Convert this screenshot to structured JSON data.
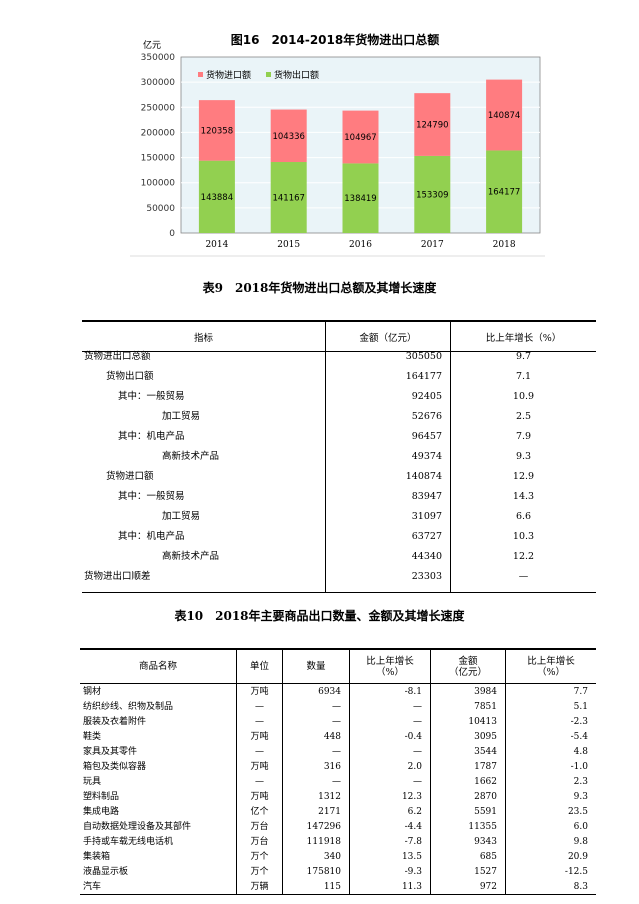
{
  "chart_data": {
    "type": "bar",
    "stacked": true,
    "title": "图16　2014-2018年货物进出口总额",
    "ylabel": "亿元",
    "ylim": [
      0,
      350000
    ],
    "yticks": [
      0,
      50000,
      100000,
      150000,
      200000,
      250000,
      300000,
      350000
    ],
    "categories": [
      "2014",
      "2015",
      "2016",
      "2017",
      "2018"
    ],
    "series": [
      {
        "name": "货物出口额",
        "color": "#92d050",
        "values": [
          143884,
          141167,
          138419,
          153309,
          164177
        ]
      },
      {
        "name": "货物进口额",
        "color": "#ff7c80",
        "values": [
          120358,
          104336,
          104967,
          124790,
          140874
        ]
      }
    ],
    "grid": true,
    "legend": "top-left",
    "background": "#eaf4f8"
  },
  "table9": {
    "title": "表9　2018年货物进出口总额及其增长速度",
    "headers": [
      "指标",
      "金额（亿元）",
      "比上年增长（%）"
    ],
    "rows": [
      {
        "name": "货物进出口总额",
        "indent": 0,
        "amount": "305050",
        "growth": "9.7"
      },
      {
        "name": "货物出口额",
        "indent": 1,
        "amount": "164177",
        "growth": "7.1"
      },
      {
        "name": "其中：一般贸易",
        "indent": 2,
        "amount": "92405",
        "growth": "10.9"
      },
      {
        "name": "加工贸易",
        "indent": 3,
        "amount": "52676",
        "growth": "2.5"
      },
      {
        "name": "其中：机电产品",
        "indent": 2,
        "amount": "96457",
        "growth": "7.9"
      },
      {
        "name": "高新技术产品",
        "indent": 3,
        "amount": "49374",
        "growth": "9.3"
      },
      {
        "name": "货物进口额",
        "indent": 1,
        "amount": "140874",
        "growth": "12.9"
      },
      {
        "name": "其中：一般贸易",
        "indent": 2,
        "amount": "83947",
        "growth": "14.3"
      },
      {
        "name": "加工贸易",
        "indent": 3,
        "amount": "31097",
        "growth": "6.6"
      },
      {
        "name": "其中：机电产品",
        "indent": 2,
        "amount": "63727",
        "growth": "10.3"
      },
      {
        "name": "高新技术产品",
        "indent": 3,
        "amount": "44340",
        "growth": "12.2"
      },
      {
        "name": "货物进出口顺差",
        "indent": 0,
        "amount": "23303",
        "growth": "—"
      }
    ]
  },
  "table10": {
    "title": "表10　2018年主要商品出口数量、金额及其增长速度",
    "headers": [
      "商品名称",
      "单位",
      "数量",
      "比上年增长",
      "（%）",
      "金额",
      "（亿元）",
      "比上年增长",
      "（%）"
    ],
    "rows": [
      [
        "钢材",
        "万吨",
        "6934",
        "-8.1",
        "3984",
        "7.7"
      ],
      [
        "纺织纱线、织物及制品",
        "—",
        "—",
        "—",
        "7851",
        "5.1"
      ],
      [
        "服装及衣着附件",
        "—",
        "—",
        "—",
        "10413",
        "-2.3"
      ],
      [
        "鞋类",
        "万吨",
        "448",
        "-0.4",
        "3095",
        "-5.4"
      ],
      [
        "家具及其零件",
        "—",
        "—",
        "—",
        "3544",
        "4.8"
      ],
      [
        "箱包及类似容器",
        "万吨",
        "316",
        "2.0",
        "1787",
        "-1.0"
      ],
      [
        "玩具",
        "—",
        "—",
        "—",
        "1662",
        "2.3"
      ],
      [
        "塑料制品",
        "万吨",
        "1312",
        "12.3",
        "2870",
        "9.3"
      ],
      [
        "集成电路",
        "亿个",
        "2171",
        "6.2",
        "5591",
        "23.5"
      ],
      [
        "自动数据处理设备及其部件",
        "万台",
        "147296",
        "-4.4",
        "11355",
        "6.0"
      ],
      [
        "手持或车载无线电话机",
        "万台",
        "111918",
        "-7.8",
        "9343",
        "9.8"
      ],
      [
        "集装箱",
        "万个",
        "340",
        "13.5",
        "685",
        "20.9"
      ],
      [
        "液晶显示板",
        "万个",
        "175810",
        "-9.3",
        "1527",
        "-12.5"
      ],
      [
        "汽车",
        "万辆",
        "115",
        "11.3",
        "972",
        "8.3"
      ]
    ]
  }
}
